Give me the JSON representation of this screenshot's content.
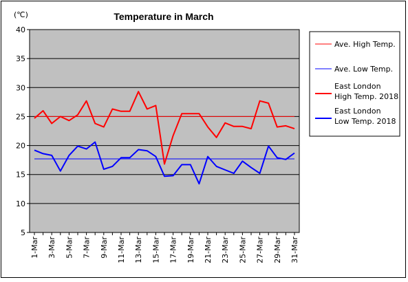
{
  "chart_data": {
    "type": "line",
    "title": "Temperature in March",
    "unit_label": "(℃)",
    "ylim": [
      5,
      40
    ],
    "yticks": [
      "5",
      "10",
      "15",
      "20",
      "25",
      "30",
      "35",
      "40"
    ],
    "grid": true,
    "legend_position": "right",
    "x": [
      "1-Mar",
      "2-Mar",
      "3-Mar",
      "4-Mar",
      "5-Mar",
      "6-Mar",
      "7-Mar",
      "8-Mar",
      "9-Mar",
      "10-Mar",
      "11-Mar",
      "12-Mar",
      "13-Mar",
      "14-Mar",
      "15-Mar",
      "16-Mar",
      "17-Mar",
      "18-Mar",
      "19-Mar",
      "20-Mar",
      "21-Mar",
      "22-Mar",
      "23-Mar",
      "24-Mar",
      "25-Mar",
      "26-Mar",
      "27-Mar",
      "28-Mar",
      "29-Mar",
      "30-Mar",
      "31-Mar"
    ],
    "xtick_labels": [
      "1-Mar",
      "3-Mar",
      "5-Mar",
      "7-Mar",
      "9-Mar",
      "11-Mar",
      "13-Mar",
      "15-Mar",
      "17-Mar",
      "19-Mar",
      "21-Mar",
      "23-Mar",
      "25-Mar",
      "27-Mar",
      "29-Mar",
      "31-Mar"
    ],
    "series": [
      {
        "name": "Ave. High Temp.",
        "color": "#ff0000",
        "width": 1,
        "values": [
          25,
          25,
          25,
          25,
          25,
          25,
          25,
          25,
          25,
          25,
          25,
          25,
          25,
          25,
          25,
          25,
          25,
          25,
          25,
          25,
          25,
          25,
          25,
          25,
          25,
          25,
          25,
          25,
          25,
          25,
          25
        ]
      },
      {
        "name": "Ave. Low Temp.",
        "color": "#0000ff",
        "width": 1,
        "values": [
          17.7,
          17.7,
          17.7,
          17.7,
          17.7,
          17.7,
          17.7,
          17.7,
          17.7,
          17.7,
          17.7,
          17.7,
          17.7,
          17.7,
          17.7,
          17.7,
          17.7,
          17.7,
          17.7,
          17.7,
          17.7,
          17.7,
          17.7,
          17.7,
          17.7,
          17.7,
          17.7,
          17.7,
          17.7,
          17.7,
          17.7
        ]
      },
      {
        "name": "East London High Temp. 2018",
        "name_lines": [
          "East London",
          "High Temp. 2018"
        ],
        "color": "#ff0000",
        "width": 2,
        "values": [
          24.7,
          26.0,
          23.8,
          25.0,
          24.3,
          25.3,
          27.7,
          23.8,
          23.2,
          26.3,
          25.9,
          25.9,
          29.3,
          26.3,
          26.9,
          16.8,
          21.7,
          25.5,
          25.5,
          25.5,
          23.2,
          21.4,
          23.9,
          23.3,
          23.3,
          22.9,
          27.7,
          27.3,
          23.2,
          23.4,
          22.9
        ]
      },
      {
        "name": "East London Low Temp. 2018",
        "name_lines": [
          "East London",
          "Low Temp. 2018"
        ],
        "color": "#0000ff",
        "width": 2,
        "values": [
          19.2,
          18.6,
          18.3,
          15.6,
          18.3,
          19.9,
          19.4,
          20.6,
          15.9,
          16.4,
          17.9,
          17.9,
          19.3,
          19.1,
          18.1,
          14.7,
          14.8,
          16.7,
          16.7,
          13.4,
          18.1,
          16.4,
          15.8,
          15.2,
          17.3,
          16.2,
          15.2,
          19.9,
          17.9,
          17.6,
          18.7
        ]
      }
    ]
  }
}
